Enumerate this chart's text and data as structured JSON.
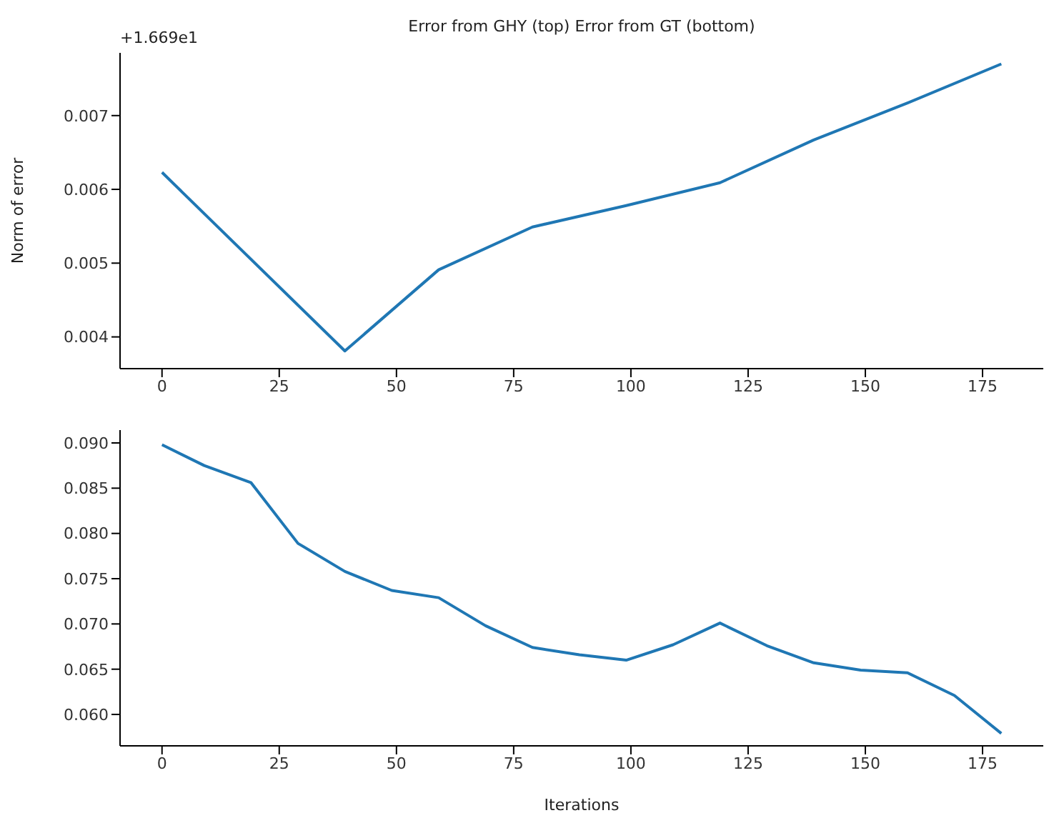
{
  "chart_data": [
    {
      "type": "line",
      "title": "Error from GHY (top) Error from GT (bottom)",
      "ylabel": "Norm of error",
      "annotations": [
        "+1.669e1"
      ],
      "x": [
        0,
        39,
        59,
        79,
        99,
        119,
        139,
        159,
        179
      ],
      "series": [
        {
          "color": "#1f77b4",
          "values": [
            0.00623,
            0.00381,
            0.00491,
            0.00549,
            0.00578,
            0.00609,
            0.00667,
            0.00717,
            0.0077
          ]
        }
      ],
      "xlim": [
        -8.95,
        187.95
      ],
      "xticks": [
        0,
        25,
        50,
        75,
        100,
        125,
        150,
        175
      ],
      "ylim": [
        0.00357,
        0.00785
      ],
      "yticks": [
        0.004,
        0.005,
        0.006,
        0.007
      ],
      "grid": false,
      "legend": false
    },
    {
      "type": "line",
      "xlabel": "Iterations",
      "x": [
        0,
        9,
        19,
        29,
        39,
        49,
        59,
        69,
        79,
        89,
        99,
        109,
        119,
        129,
        139,
        149,
        159,
        169,
        179
      ],
      "series": [
        {
          "color": "#1f77b4",
          "values": [
            0.0898,
            0.0875,
            0.0856,
            0.0789,
            0.0758,
            0.0737,
            0.0729,
            0.0698,
            0.0674,
            0.0666,
            0.066,
            0.0677,
            0.0701,
            0.0676,
            0.0657,
            0.0649,
            0.0646,
            0.0621,
            0.0579
          ]
        }
      ],
      "xlim": [
        -8.95,
        187.95
      ],
      "xticks": [
        0,
        25,
        50,
        75,
        100,
        125,
        150,
        175
      ],
      "ylim": [
        0.05653,
        0.09142
      ],
      "yticks": [
        {
          "value": 0.06,
          "label": "0.060"
        },
        0.065,
        {
          "value": 0.07,
          "label": "0.070"
        },
        0.075,
        {
          "value": 0.08,
          "label": "0.080"
        },
        0.085,
        {
          "value": 0.09,
          "label": "0.090"
        }
      ],
      "grid": false,
      "legend": false
    }
  ]
}
